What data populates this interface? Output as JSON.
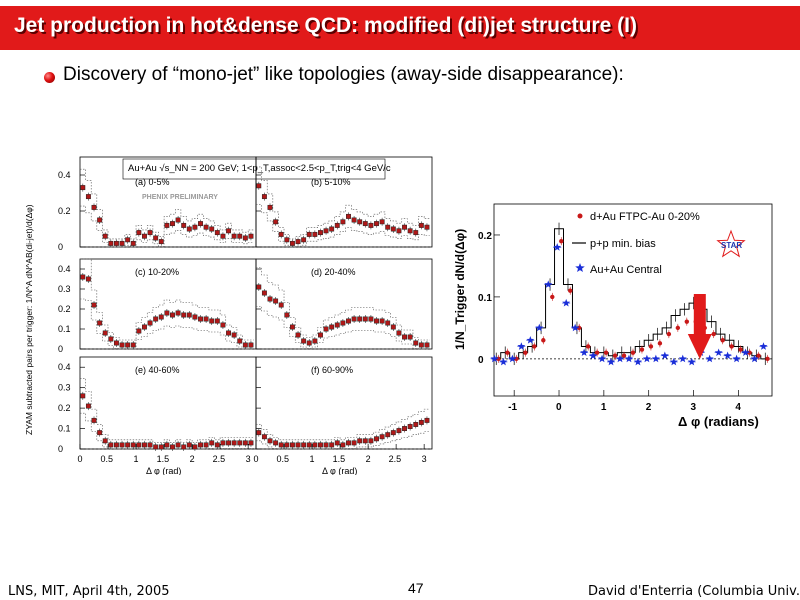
{
  "slide": {
    "title": "Jet production in hot&dense QCD: modified (di)jet structure (I)",
    "bullet": "Discovery of “mono-jet” like topologies (away-side disappearance):",
    "footer_left": "LNS, MIT, April 4th, 2005",
    "footer_page": "47",
    "footer_right": "David d'Enterria (Columbia Univ.)",
    "colors": {
      "title_bar": "#e11a1a",
      "accent_arrow": "#e11a1a",
      "star_blue": "#1a2ed8",
      "marker_red": "#c81818"
    }
  },
  "chart_data": [
    {
      "type": "scatter",
      "label": "PHENIX 6-panel",
      "header": "Au+Au √s_NN = 200 GeV;  1<p_T,assoc<2.5<p_T,trig<4 GeV/c",
      "watermark": "PHENIX PRELIMINARY",
      "ylabel": "ZYAM subtracted pairs per trigger: 1/N^A dN^AB(di-jet)/d(Δφ)",
      "xlabel": "Δ φ (rad)",
      "xlim": [
        0,
        3.14
      ],
      "x_ticks": [
        "0",
        "0.5",
        "1",
        "1.5",
        "2",
        "2.5",
        "3"
      ],
      "x": [
        0.05,
        0.15,
        0.25,
        0.35,
        0.45,
        0.55,
        0.65,
        0.75,
        0.85,
        0.95,
        1.05,
        1.15,
        1.25,
        1.35,
        1.45,
        1.55,
        1.65,
        1.75,
        1.85,
        1.95,
        2.05,
        2.15,
        2.25,
        2.35,
        2.45,
        2.55,
        2.65,
        2.75,
        2.85,
        2.95,
        3.05
      ],
      "panels": [
        {
          "label": "(a) 0-5%",
          "ylim": [
            0,
            0.5
          ],
          "y_ticks": [
            "0",
            "0.2",
            "0.4"
          ],
          "values": [
            0.33,
            0.28,
            0.22,
            0.15,
            0.06,
            0.02,
            0.02,
            0.02,
            0.04,
            0.02,
            0.08,
            0.06,
            0.08,
            0.05,
            0.03,
            0.12,
            0.13,
            0.15,
            0.12,
            0.1,
            0.11,
            0.13,
            0.11,
            0.1,
            0.08,
            0.06,
            0.09,
            0.06,
            0.06,
            0.05,
            0.06
          ]
        },
        {
          "label": "(b) 5-10%",
          "ylim": [
            0,
            0.5
          ],
          "y_ticks": [
            "0",
            "0.2",
            "0.4"
          ],
          "values": [
            0.34,
            0.28,
            0.22,
            0.14,
            0.07,
            0.04,
            0.02,
            0.03,
            0.04,
            0.07,
            0.07,
            0.08,
            0.09,
            0.1,
            0.12,
            0.14,
            0.17,
            0.15,
            0.14,
            0.13,
            0.12,
            0.13,
            0.14,
            0.11,
            0.1,
            0.09,
            0.11,
            0.09,
            0.08,
            0.12,
            0.11
          ]
        },
        {
          "label": "(c) 10-20%",
          "ylim": [
            0,
            0.45
          ],
          "y_ticks": [
            "0",
            "0.1",
            "0.2",
            "0.3",
            "0.4"
          ],
          "values": [
            0.36,
            0.35,
            0.22,
            0.13,
            0.08,
            0.05,
            0.03,
            0.02,
            0.02,
            0.02,
            0.09,
            0.11,
            0.13,
            0.15,
            0.16,
            0.18,
            0.17,
            0.18,
            0.17,
            0.17,
            0.16,
            0.15,
            0.15,
            0.14,
            0.14,
            0.12,
            0.08,
            0.07,
            0.04,
            0.02,
            0.02
          ]
        },
        {
          "label": "(d) 20-40%",
          "ylim": [
            0,
            0.45
          ],
          "y_ticks": [
            "0",
            "0.1",
            "0.2",
            "0.3",
            "0.4"
          ],
          "values": [
            0.31,
            0.28,
            0.25,
            0.24,
            0.22,
            0.17,
            0.11,
            0.07,
            0.04,
            0.03,
            0.04,
            0.07,
            0.1,
            0.11,
            0.12,
            0.13,
            0.14,
            0.15,
            0.15,
            0.15,
            0.15,
            0.14,
            0.14,
            0.13,
            0.11,
            0.08,
            0.06,
            0.06,
            0.03,
            0.02,
            0.02
          ]
        },
        {
          "label": "(e) 40-60%",
          "ylim": [
            0,
            0.45
          ],
          "y_ticks": [
            "0",
            "0.1",
            "0.2",
            "0.3",
            "0.4"
          ],
          "values": [
            0.26,
            0.21,
            0.14,
            0.08,
            0.04,
            0.02,
            0.02,
            0.02,
            0.02,
            0.02,
            0.02,
            0.02,
            0.02,
            0.01,
            0.01,
            0.02,
            0.01,
            0.02,
            0.01,
            0.02,
            0.01,
            0.02,
            0.02,
            0.03,
            0.02,
            0.03,
            0.03,
            0.03,
            0.03,
            0.03,
            0.03
          ]
        },
        {
          "label": "(f) 60-90%",
          "ylim": [
            0,
            0.45
          ],
          "y_ticks": [
            "0",
            "0.1",
            "0.2",
            "0.3",
            "0.4"
          ],
          "values": [
            0.08,
            0.06,
            0.04,
            0.03,
            0.02,
            0.02,
            0.02,
            0.02,
            0.02,
            0.02,
            0.02,
            0.02,
            0.02,
            0.02,
            0.03,
            0.02,
            0.03,
            0.03,
            0.04,
            0.04,
            0.04,
            0.05,
            0.06,
            0.07,
            0.08,
            0.09,
            0.1,
            0.11,
            0.12,
            0.13,
            0.14
          ]
        }
      ]
    },
    {
      "type": "scatter",
      "label": "STAR",
      "ylabel": "1/N_Trigger dN/d(Δφ)",
      "xlabel": "Δ φ (radians)",
      "xlim": [
        -1.45,
        4.75
      ],
      "ylim": [
        -0.06,
        0.25
      ],
      "x_ticks": [
        "-1",
        "0",
        "1",
        "2",
        "3",
        "4"
      ],
      "y_ticks": [
        "0",
        "0.1",
        "0.2"
      ],
      "badge": "STAR",
      "x": [
        -1.4,
        -1.2,
        -1.0,
        -0.8,
        -0.6,
        -0.4,
        -0.2,
        0.0,
        0.2,
        0.4,
        0.6,
        0.8,
        1.0,
        1.2,
        1.4,
        1.6,
        1.8,
        2.0,
        2.2,
        2.4,
        2.6,
        2.8,
        3.0,
        3.2,
        3.4,
        3.6,
        3.8,
        4.0,
        4.2,
        4.4,
        4.6
      ],
      "series": [
        {
          "name": "d+Au FTPC-Au 0-20%",
          "marker": "circle",
          "color": "#c81818",
          "values": [
            0.0,
            0.01,
            0.0,
            0.01,
            0.02,
            0.03,
            0.1,
            0.19,
            0.11,
            0.05,
            0.02,
            0.01,
            0.01,
            0.005,
            0.005,
            0.01,
            0.015,
            0.02,
            0.025,
            0.04,
            0.05,
            0.06,
            0.06,
            0.05,
            0.04,
            0.03,
            0.02,
            0.015,
            0.01,
            0.005,
            0.0
          ]
        },
        {
          "name": "p+p min. bias",
          "marker": "line",
          "color": "#000000",
          "values": [
            0.0,
            0.01,
            0.0,
            0.01,
            0.02,
            0.05,
            0.12,
            0.21,
            0.12,
            0.05,
            0.02,
            0.01,
            0.01,
            0.005,
            0.01,
            0.01,
            0.02,
            0.03,
            0.04,
            0.05,
            0.07,
            0.08,
            0.09,
            0.08,
            0.06,
            0.04,
            0.03,
            0.02,
            0.01,
            0.005,
            0.0
          ]
        },
        {
          "name": "Au+Au Central",
          "marker": "star",
          "color": "#1a2ed8",
          "values": [
            0.0,
            -0.005,
            0.0,
            0.02,
            0.03,
            0.05,
            0.12,
            0.18,
            0.09,
            0.05,
            0.01,
            0.005,
            0.0,
            -0.005,
            0.0,
            0.0,
            -0.005,
            0.0,
            0.0,
            0.005,
            -0.005,
            0.0,
            -0.005,
            0.01,
            0.0,
            0.01,
            0.005,
            0.0,
            0.01,
            0.0,
            0.02
          ]
        }
      ]
    }
  ]
}
